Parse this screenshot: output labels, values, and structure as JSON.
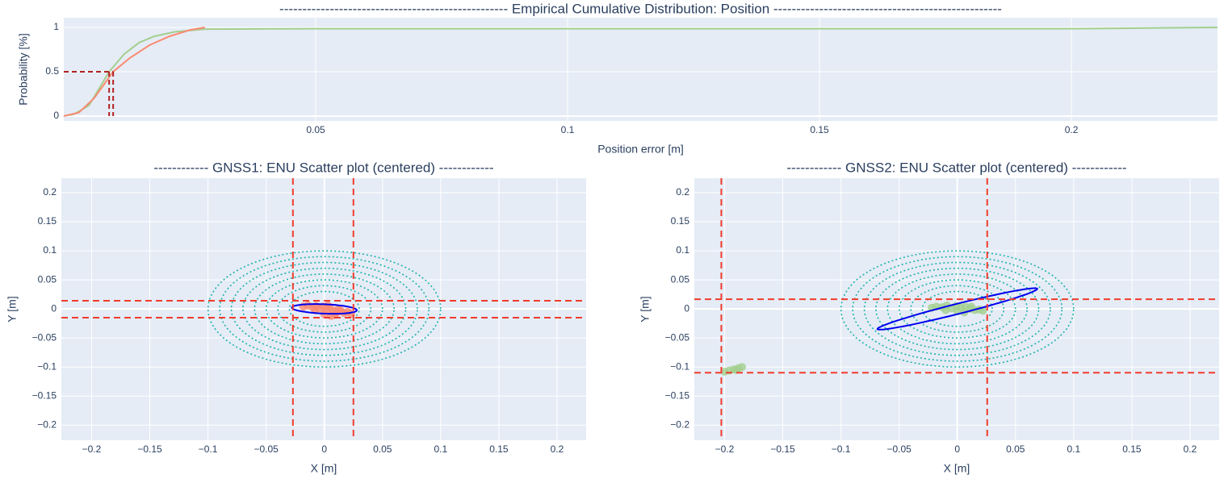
{
  "chart_data": [
    {
      "type": "line",
      "title": "--------------------------------------------------  Empirical Cumulative Distribution: Position  --------------------------------------------------",
      "x_label": "Position error [m]",
      "y_label": "Probability [%]",
      "xlim": [
        0,
        0.229
      ],
      "ylim": [
        -0.055,
        1.109
      ],
      "xticks": [
        0.05,
        0.1,
        0.15,
        0.2
      ],
      "yticks": [
        0,
        0.5,
        1
      ],
      "grid": true,
      "series": [
        {
          "color": "#a3cf8e",
          "x": [
            0,
            0.002,
            0.005,
            0.009,
            0.012,
            0.015,
            0.018,
            0.022,
            0.028,
            0.05,
            0.1,
            0.2,
            0.22,
            0.229
          ],
          "values": [
            0,
            0.02,
            0.12,
            0.5,
            0.7,
            0.83,
            0.9,
            0.95,
            0.98,
            0.985,
            0.985,
            0.985,
            0.995,
            1
          ]
        },
        {
          "color": "#fa8a72",
          "x": [
            0,
            0.003,
            0.006,
            0.0098,
            0.013,
            0.017,
            0.021,
            0.025,
            0.028
          ],
          "values": [
            0,
            0.04,
            0.2,
            0.5,
            0.65,
            0.8,
            0.9,
            0.97,
            1
          ]
        }
      ],
      "median_level": 0.5,
      "medians": [
        0.009,
        0.0098
      ],
      "median_color": "#b22222"
    },
    {
      "type": "scatter",
      "title": "------------ GNSS1: ENU Scatter plot (centered) ------------",
      "x_label": "X [m]",
      "y_label": "Y [m]",
      "xlim": [
        -0.226,
        0.225
      ],
      "ylim": [
        -0.226,
        0.225
      ],
      "xticks": [
        {
          "value": -0.2,
          "label": "−0.2"
        },
        {
          "value": -0.15,
          "label": "−0.15"
        },
        {
          "value": -0.1,
          "label": "−0.1"
        },
        {
          "value": -0.05,
          "label": "−0.05"
        },
        0,
        0.05,
        0.1,
        0.15,
        0.2
      ],
      "yticks": [
        {
          "value": -0.2,
          "label": "−0.2"
        },
        {
          "value": -0.15,
          "label": "−0.15"
        },
        {
          "value": -0.1,
          "label": "−0.1"
        },
        {
          "value": -0.05,
          "label": "−0.05"
        },
        0,
        0.05,
        0.1,
        0.15,
        0.2
      ],
      "grid": true,
      "color": "#fa8a72",
      "x": [
        -0.018,
        -0.014,
        -0.01,
        -0.007,
        -0.004,
        -0.001,
        0.002,
        0.005,
        0.008,
        0.011,
        0.014,
        0.017,
        0.02,
        0.023,
        0.0,
        0.006,
        0.012,
        -0.008,
        0.003,
        0.009
      ],
      "values": [
        0.004,
        0.006,
        0.003,
        0.005,
        0.001,
        0.004,
        -0.002,
        0.002,
        -0.004,
        -0.006,
        -0.003,
        -0.007,
        -0.005,
        -0.008,
        -0.009,
        -0.012,
        0.0,
        -0.002,
        0.006,
        -0.01
      ],
      "circles": [
        0.03,
        0.04,
        0.05,
        0.06,
        0.07,
        0.08,
        0.09,
        0.1
      ],
      "circle_color": "#20b2aa",
      "ellipse": {
        "cx": 0,
        "cy": 0,
        "rx": 0.028,
        "ry": 0.008,
        "angle": -5
      },
      "ellipse_color": "#0000ee",
      "vlines": [
        -0.027,
        0.025
      ],
      "hlines": [
        0.014,
        -0.015
      ],
      "line_color": "#f03c2d"
    },
    {
      "type": "scatter",
      "title": "------------ GNSS2: ENU Scatter plot (centered) ------------",
      "x_label": "X [m]",
      "y_label": "Y [m]",
      "xlim": [
        -0.226,
        0.225
      ],
      "ylim": [
        -0.226,
        0.225
      ],
      "xticks": [
        {
          "value": -0.2,
          "label": "−0.2"
        },
        {
          "value": -0.15,
          "label": "−0.15"
        },
        {
          "value": -0.1,
          "label": "−0.1"
        },
        {
          "value": -0.05,
          "label": "−0.05"
        },
        0,
        0.05,
        0.1,
        0.15,
        0.2
      ],
      "yticks": [
        {
          "value": -0.2,
          "label": "−0.2"
        },
        {
          "value": -0.15,
          "label": "−0.15"
        },
        {
          "value": -0.1,
          "label": "−0.1"
        },
        {
          "value": -0.05,
          "label": "−0.05"
        },
        0,
        0.05,
        0.1,
        0.15,
        0.2
      ],
      "grid": true,
      "color": "#a3cf8e",
      "x": [
        -0.022,
        -0.018,
        -0.013,
        -0.009,
        -0.005,
        -0.001,
        0.003,
        0.007,
        0.011,
        0.015,
        0.019,
        0.022,
        0.0,
        0.006,
        -0.01,
        0.012,
        -0.196,
        -0.192,
        -0.188,
        -0.185,
        -0.2,
        -0.19
      ],
      "values": [
        0.002,
        0.004,
        0.003,
        0.006,
        0.001,
        0.005,
        0.003,
        0.004,
        0.0,
        -0.002,
        -0.001,
        -0.003,
        -0.004,
        -0.006,
        -0.002,
        0.004,
        -0.106,
        -0.104,
        -0.102,
        -0.1,
        -0.108,
        -0.105
      ],
      "circles": [
        0.03,
        0.04,
        0.05,
        0.06,
        0.07,
        0.08,
        0.09,
        0.1
      ],
      "circle_color": "#20b2aa",
      "ellipse": {
        "cx": 0,
        "cy": 0,
        "rx": 0.077,
        "ry": 0.008,
        "angle": 27
      },
      "ellipse_color": "#0000ee",
      "vlines": [
        -0.2028,
        0.0257
      ],
      "hlines": [
        0.0167,
        -0.1097
      ],
      "line_color": "#f03c2d"
    }
  ]
}
